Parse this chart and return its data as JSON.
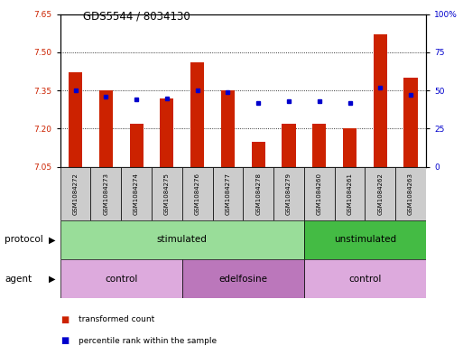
{
  "title": "GDS5544 / 8034130",
  "samples": [
    "GSM1084272",
    "GSM1084273",
    "GSM1084274",
    "GSM1084275",
    "GSM1084276",
    "GSM1084277",
    "GSM1084278",
    "GSM1084279",
    "GSM1084260",
    "GSM1084261",
    "GSM1084262",
    "GSM1084263"
  ],
  "bar_values": [
    7.42,
    7.35,
    7.22,
    7.32,
    7.46,
    7.35,
    7.15,
    7.22,
    7.22,
    7.2,
    7.57,
    7.4
  ],
  "dot_values": [
    50,
    46,
    44,
    45,
    50,
    49,
    42,
    43,
    43,
    42,
    52,
    47
  ],
  "ylim_left": [
    7.05,
    7.65
  ],
  "ylim_right": [
    0,
    100
  ],
  "yticks_left": [
    7.05,
    7.2,
    7.35,
    7.5,
    7.65
  ],
  "yticks_right": [
    0,
    25,
    50,
    75,
    100
  ],
  "ytick_labels_right": [
    "0",
    "25",
    "50",
    "75",
    "100%"
  ],
  "bar_color": "#cc2200",
  "dot_color": "#0000cc",
  "bar_width": 0.45,
  "protocol_color_stim": "#99dd99",
  "protocol_color_unstim": "#44bb44",
  "agent_color_control": "#ddaadd",
  "agent_color_edel": "#bb77bb",
  "legend_bar_label": "transformed count",
  "legend_dot_label": "percentile rank within the sample",
  "background_color": "#ffffff",
  "label_bg": "#cccccc"
}
